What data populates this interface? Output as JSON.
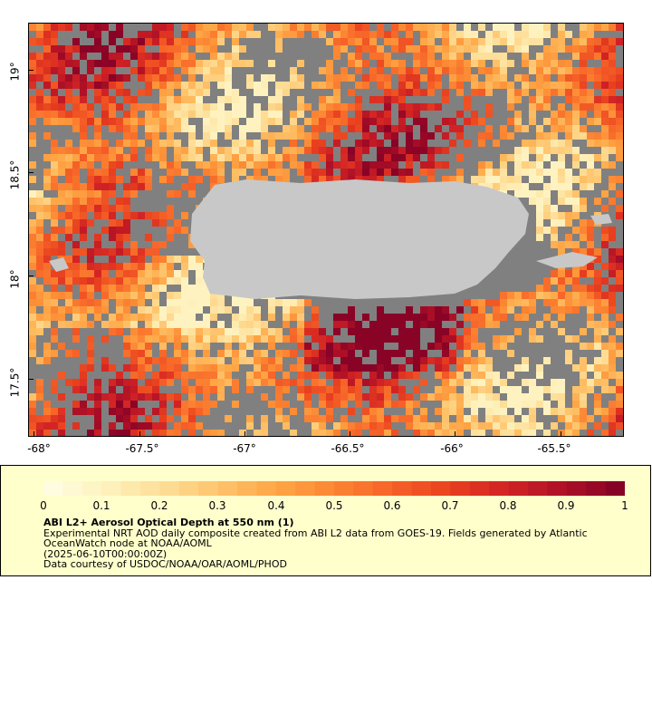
{
  "map": {
    "lat_labels": [
      "19°",
      "18.5°",
      "18°",
      "17.5°"
    ],
    "lat_values": [
      19,
      18.5,
      18,
      17.5
    ],
    "lon_labels": [
      "-68°",
      "-67.5°",
      "-67°",
      "-66.5°",
      "-66°",
      "-65.5°"
    ],
    "lon_values": [
      -68,
      -67.5,
      -67,
      -66.5,
      -66,
      -65.5
    ],
    "lon_range": [
      -68.03,
      -65.2
    ],
    "lat_range": [
      17.22,
      19.23
    ],
    "land_color": "#c8c8c8",
    "nodata_color": "#808080"
  },
  "colorbar": {
    "ticks": [
      "0",
      "0.1",
      "0.2",
      "0.3",
      "0.4",
      "0.5",
      "0.6",
      "0.7",
      "0.8",
      "0.9",
      "1"
    ],
    "range": [
      0,
      1
    ],
    "colors": [
      "#fffee6",
      "#fef3c0",
      "#fedf99",
      "#fec46c",
      "#fea646",
      "#fc8532",
      "#f66228",
      "#e8401f",
      "#d02225",
      "#ab0f26",
      "#800026"
    ]
  },
  "legend": {
    "title": "ABI L2+ Aerosol Optical Depth at 550 nm (1)",
    "line1": "Experimental NRT AOD daily composite created from ABI L2 data from GOES-19. Fields generated by Atlantic OceanWatch node at NOAA/AOML",
    "line2": "(2025-06-10T00:00:00Z)",
    "line3": "Data courtesy of USDOC/NOAA/OAR/AOML/PHOD"
  }
}
